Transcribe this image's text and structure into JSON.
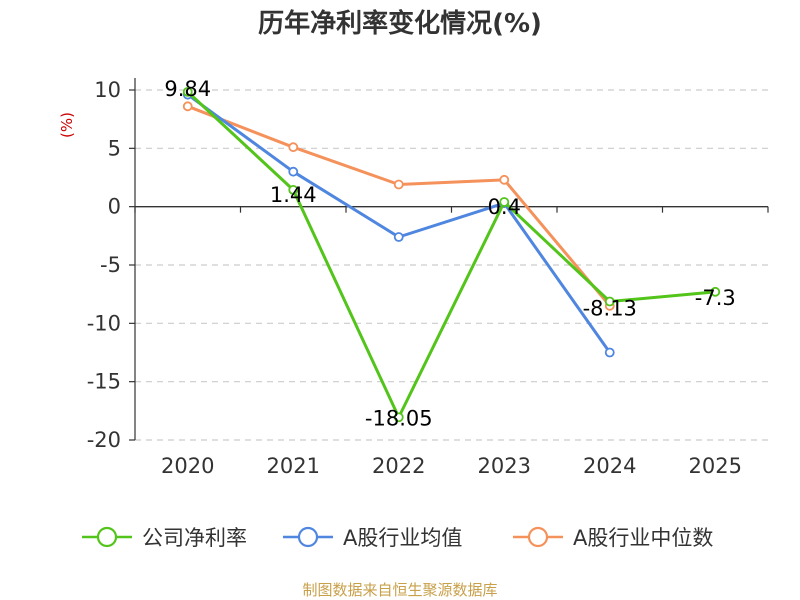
{
  "chart_data": {
    "type": "line",
    "title": "历年净利率变化情况(%)",
    "xlabel": "",
    "ylabel": "(%)",
    "categories": [
      "2020",
      "2021",
      "2022",
      "2023",
      "2024",
      "2025"
    ],
    "ylim": [
      -20,
      10
    ],
    "yticks": [
      10,
      5,
      0,
      -5,
      -10,
      -15,
      -20
    ],
    "grid": true,
    "legend_position": "bottom",
    "series": [
      {
        "name": "公司净利率",
        "color": "#52c41a",
        "values": [
          9.84,
          1.44,
          -18.05,
          0.4,
          -8.13,
          -7.3
        ],
        "labels": [
          "9.84",
          "1.44",
          "-18.05",
          "0.4",
          "-8.13",
          "-7.3"
        ]
      },
      {
        "name": "A股行业均值",
        "color": "#4f86e0",
        "values": [
          9.6,
          3.0,
          -2.6,
          0.3,
          -12.5,
          null
        ]
      },
      {
        "name": "A股行业中位数",
        "color": "#f5915a",
        "values": [
          8.6,
          5.1,
          1.9,
          2.3,
          -8.5,
          null
        ]
      }
    ],
    "source": "制图数据来自恒生聚源数据库"
  }
}
